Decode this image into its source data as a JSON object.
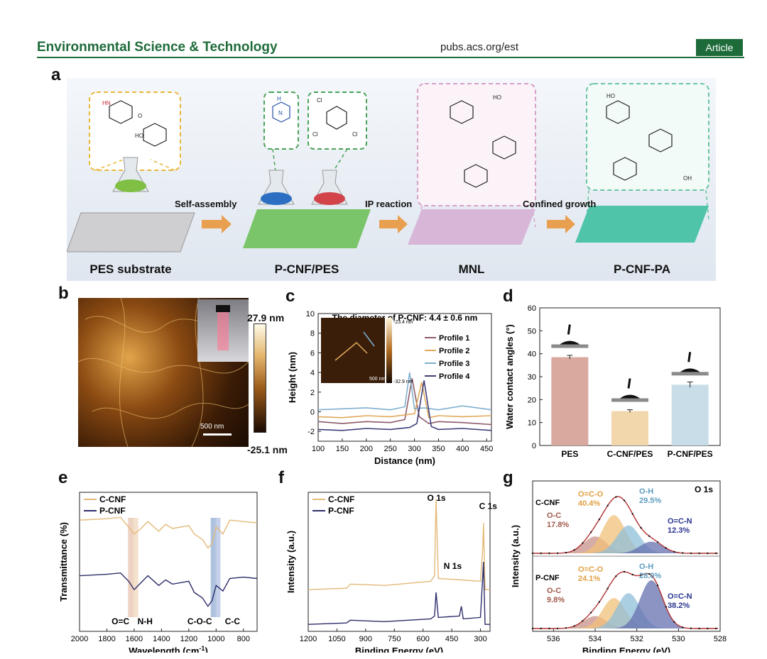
{
  "header": {
    "journal": "Environmental Science & Technology",
    "url": "pubs.acs.org/est",
    "type": "Article"
  },
  "panel_labels": {
    "a": "a",
    "b": "b",
    "c": "c",
    "d": "d",
    "e": "e",
    "f": "f",
    "g": "g"
  },
  "panel_a": {
    "stages": [
      "PES substrate",
      "P-CNF/PES",
      "MNL",
      "P-CNF-PA"
    ],
    "arrows": [
      "Self-assembly",
      "IP reaction",
      "Confined growth"
    ],
    "mol_labels": {
      "hn": "HN",
      "o": "O",
      "ho": "HO",
      "cl": "Cl",
      "oh": "OH",
      "h": "H",
      "n": "N"
    }
  },
  "panel_b": {
    "colorbar_max": "27.9 nm",
    "colorbar_min": "-25.1 nm",
    "scale_bar": "500 nm"
  },
  "panel_c_inset": {
    "max": "-23.4 nm",
    "min": "-32.9 nm",
    "scale": "500 nm"
  },
  "chart_data": [
    {
      "panel": "c",
      "type": "line",
      "title": "The diameter of P-CNF: 4.4 ± 0.6 nm",
      "xlabel": "Distance (nm)",
      "ylabel": "Height (nm)",
      "xlim": [
        100,
        460
      ],
      "ylim": [
        -3,
        10
      ],
      "xticks": [
        "100",
        "150",
        "200",
        "250",
        "300",
        "350",
        "400",
        "450"
      ],
      "yticks": [
        "-2",
        "0",
        "2",
        "4",
        "6",
        "8",
        "10"
      ],
      "series": [
        {
          "name": "Profile 1",
          "color": "#8c5a6a",
          "x": [
            100,
            150,
            200,
            250,
            280,
            295,
            310,
            330,
            350,
            400,
            460
          ],
          "y": [
            -1.0,
            -1.2,
            -1.0,
            -1.1,
            -0.8,
            3.4,
            -0.5,
            -1.2,
            -1.0,
            -1.1,
            -1.3
          ]
        },
        {
          "name": "Profile 2",
          "color": "#e0a95a",
          "x": [
            100,
            150,
            200,
            250,
            285,
            300,
            315,
            330,
            350,
            400,
            460
          ],
          "y": [
            -0.5,
            -0.6,
            -0.4,
            -0.5,
            -0.3,
            -0.2,
            3.0,
            -0.6,
            -0.4,
            -0.5,
            -0.4
          ]
        },
        {
          "name": "Profile 3",
          "color": "#7fb0cf",
          "x": [
            100,
            150,
            200,
            250,
            280,
            290,
            300,
            320,
            350,
            400,
            460
          ],
          "y": [
            0.2,
            0.3,
            0.4,
            0.2,
            0.5,
            4.0,
            0.3,
            0.4,
            0.2,
            0.6,
            0.2
          ]
        },
        {
          "name": "Profile 4",
          "color": "#3f3f7a",
          "x": [
            100,
            150,
            200,
            250,
            290,
            305,
            320,
            335,
            350,
            400,
            460
          ],
          "y": [
            -1.8,
            -1.9,
            -1.7,
            -1.8,
            -1.6,
            -1.2,
            3.2,
            -1.5,
            -1.8,
            -1.7,
            -1.9
          ]
        }
      ]
    },
    {
      "panel": "d",
      "type": "bar",
      "ylabel": "Water contact angles (°)",
      "ylim": [
        0,
        60
      ],
      "yticks": [
        "0",
        "10",
        "20",
        "30",
        "40",
        "50",
        "60"
      ],
      "categories": [
        "PES",
        "C-CNF/PES",
        "P-CNF/PES"
      ],
      "values": [
        38.5,
        15.0,
        26.5
      ],
      "errors": [
        0.8,
        0.6,
        1.2
      ],
      "colors": [
        "#d9a9a0",
        "#f2d7ad",
        "#c9dde8"
      ]
    },
    {
      "panel": "e",
      "type": "line",
      "xlabel": "Wavelength (cm",
      "xlabel_sup": "-1",
      "xlabel_tail": ")",
      "ylabel": "Transmittance (%)",
      "xlim": [
        2000,
        700
      ],
      "xticks": [
        "2000",
        "1800",
        "1600",
        "1400",
        "1200",
        "1000",
        "800"
      ],
      "annotations": [
        "O=C",
        "N-H",
        "C-O-C",
        "C-C"
      ],
      "series": [
        {
          "name": "C-CNF",
          "color": "#e3b978",
          "x": [
            2000,
            1800,
            1700,
            1640,
            1600,
            1560,
            1500,
            1420,
            1370,
            1320,
            1200,
            1160,
            1100,
            1060,
            1030,
            1000,
            950,
            900,
            800,
            700
          ],
          "y": [
            80,
            81,
            82,
            75,
            70,
            73,
            79,
            72,
            77,
            74,
            76,
            70,
            66,
            60,
            63,
            75,
            70,
            80,
            79,
            78
          ]
        },
        {
          "name": "P-CNF",
          "color": "#2d2d6b",
          "x": [
            2000,
            1800,
            1700,
            1640,
            1600,
            1560,
            1500,
            1420,
            1370,
            1320,
            1200,
            1160,
            1100,
            1060,
            1030,
            1000,
            950,
            900,
            800,
            700
          ],
          "y": [
            40,
            41,
            42,
            36,
            30,
            34,
            40,
            33,
            37,
            34,
            36,
            28,
            24,
            18,
            22,
            33,
            29,
            38,
            39,
            38
          ]
        }
      ]
    },
    {
      "panel": "f",
      "type": "line",
      "xlabel": "Binding Energy (eV)",
      "ylabel": "Intensity (a.u.)",
      "xlim": [
        1200,
        250
      ],
      "xticks": [
        "1200",
        "1050",
        "900",
        "750",
        "600",
        "450",
        "300"
      ],
      "annotations": [
        "O 1s",
        "N 1s",
        "C 1s"
      ],
      "series": [
        {
          "name": "C-CNF",
          "color": "#e3b978",
          "x": [
            1200,
            1000,
            980,
            800,
            560,
            540,
            532,
            520,
            400,
            300,
            288,
            284,
            276,
            250
          ],
          "y": [
            30,
            31,
            34,
            33,
            36,
            40,
            95,
            38,
            37,
            36,
            60,
            78,
            30,
            30
          ]
        },
        {
          "name": "P-CNF",
          "color": "#2d2d6b",
          "x": [
            1200,
            1000,
            980,
            800,
            560,
            540,
            532,
            520,
            410,
            400,
            390,
            300,
            288,
            284,
            276,
            250
          ],
          "y": [
            5,
            6,
            8,
            7,
            9,
            11,
            28,
            10,
            11,
            18,
            9,
            10,
            40,
            50,
            5,
            5
          ]
        }
      ]
    },
    {
      "panel": "g",
      "type": "line",
      "xlabel": "Binding Energy (eV)",
      "ylabel": "Intensity (a.u.)",
      "xlim": [
        537,
        528
      ],
      "xticks": [
        "536",
        "534",
        "532",
        "530",
        "528"
      ],
      "label_core": "O 1s",
      "sub_titles": [
        "C-CNF",
        "P-CNF"
      ],
      "components_top": [
        {
          "name": "O-C",
          "pct": "17.8%"
        },
        {
          "name": "O=C-O",
          "pct": "40.4%"
        },
        {
          "name": "O-H",
          "pct": "29.5%"
        },
        {
          "name": "O=C-N",
          "pct": "12.3%"
        }
      ],
      "components_bottom": [
        {
          "name": "O-C",
          "pct": "9.8%"
        },
        {
          "name": "O=C-O",
          "pct": "24.1%"
        },
        {
          "name": "O-H",
          "pct": "28.0%"
        },
        {
          "name": "O=C-N",
          "pct": "38.2%"
        }
      ]
    }
  ]
}
